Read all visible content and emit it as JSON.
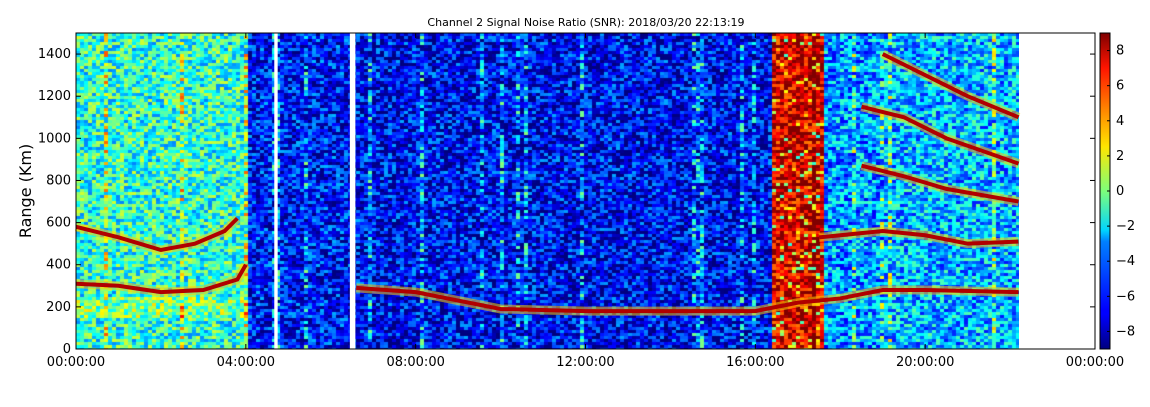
{
  "chart_data": {
    "type": "heatmap",
    "title": "Channel 2 Signal Noise Ratio (SNR): 2018/03/20 22:13:19",
    "xlabel": "",
    "ylabel": "Range (Km)",
    "x_ticks": [
      "00:00:00",
      "04:00:00",
      "08:00:00",
      "12:00:00",
      "16:00:00",
      "20:00:00",
      "00:00:00"
    ],
    "x_range_hours": [
      0,
      24
    ],
    "data_end_hours": 22.22,
    "y_ticks": [
      "0",
      "200",
      "400",
      "600",
      "800",
      "1000",
      "1200",
      "1400"
    ],
    "ylim": [
      0,
      1500
    ],
    "colorbar": {
      "ticks": [
        "8",
        "6",
        "4",
        "2",
        "0",
        "−2",
        "−4",
        "−6",
        "−8"
      ],
      "range": [
        -9,
        9
      ],
      "colormap": "jet"
    },
    "data_gaps_hours": [
      [
        4.67,
        4.75
      ],
      [
        6.45,
        6.58
      ]
    ],
    "echo_traces": [
      {
        "name": "",
        "points": [
          [
            0,
            310
          ],
          [
            1,
            300
          ],
          [
            2,
            270
          ],
          [
            3,
            280
          ],
          [
            3.8,
            330
          ],
          [
            4.0,
            400
          ]
        ]
      },
      {
        "name": "",
        "points": [
          [
            0,
            580
          ],
          [
            1,
            530
          ],
          [
            2,
            470
          ],
          [
            2.8,
            500
          ],
          [
            3.5,
            560
          ],
          [
            3.8,
            620
          ]
        ]
      },
      {
        "name": "",
        "points": [
          [
            6.6,
            290
          ],
          [
            8,
            270
          ],
          [
            9,
            230
          ],
          [
            10,
            190
          ],
          [
            12,
            180
          ],
          [
            16,
            180
          ],
          [
            16.5,
            200
          ],
          [
            17,
            220
          ],
          [
            18,
            240
          ],
          [
            19,
            280
          ],
          [
            20,
            280
          ],
          [
            22.2,
            270
          ]
        ]
      },
      {
        "name": "",
        "points": [
          [
            17.5,
            530
          ],
          [
            19,
            560
          ],
          [
            20,
            540
          ],
          [
            21,
            500
          ],
          [
            22.2,
            510
          ]
        ]
      },
      {
        "name": "",
        "points": [
          [
            18.5,
            870
          ],
          [
            19.5,
            820
          ],
          [
            20.5,
            760
          ],
          [
            22.2,
            700
          ]
        ]
      },
      {
        "name": "",
        "points": [
          [
            18.5,
            1150
          ],
          [
            19.5,
            1100
          ],
          [
            20.5,
            1000
          ],
          [
            22.2,
            880
          ]
        ]
      },
      {
        "name": "",
        "points": [
          [
            19,
            1400
          ],
          [
            20,
            1300
          ],
          [
            21,
            1200
          ],
          [
            22.2,
            1100
          ]
        ]
      }
    ],
    "high_snr_band_hours": [
      16.3,
      17.6
    ],
    "grid": false
  }
}
